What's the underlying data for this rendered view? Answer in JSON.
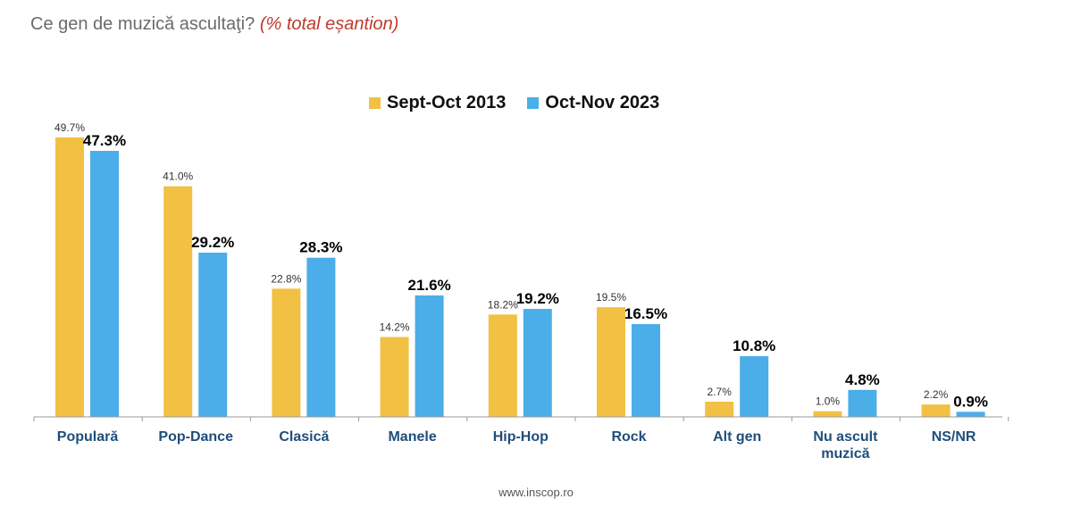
{
  "header": {
    "question": "Ce gen de muzică ascultaţi?",
    "subtitle": "(% total eșantion)"
  },
  "footer": {
    "source": "www.inscop.ro"
  },
  "colors": {
    "series1": "#F2C043",
    "series2": "#4BAEE8",
    "axis": "#9a9a9a",
    "category_label": "#1F4E79"
  },
  "chart_data": {
    "type": "bar",
    "title": "Ce gen de muzică ascultaţi? (% total eșantion)",
    "xlabel": "",
    "ylabel": "",
    "ylim": [
      0,
      55
    ],
    "grid": false,
    "legend_position": "top-center",
    "categories": [
      "Populară",
      "Pop-Dance",
      "Clasică",
      "Manele",
      "Hip-Hop",
      "Rock",
      "Alt gen",
      "Nu ascult muzică",
      "NS/NR"
    ],
    "series": [
      {
        "name": "Sept-Oct 2013",
        "values": [
          49.7,
          41.0,
          22.8,
          14.2,
          18.2,
          19.5,
          2.7,
          1.0,
          2.2
        ],
        "labels": [
          "49.7%",
          "41.0%",
          "22.8%",
          "14.2%",
          "18.2%",
          "19.5%",
          "2.7%",
          "1.0%",
          "2.2%"
        ]
      },
      {
        "name": "Oct-Nov 2023",
        "values": [
          47.3,
          29.2,
          28.3,
          21.6,
          19.2,
          16.5,
          10.8,
          4.8,
          0.9
        ],
        "labels": [
          "47.3%",
          "29.2%",
          "28.3%",
          "21.6%",
          "19.2%",
          "16.5%",
          "10.8%",
          "4.8%",
          "0.9%"
        ]
      }
    ]
  }
}
